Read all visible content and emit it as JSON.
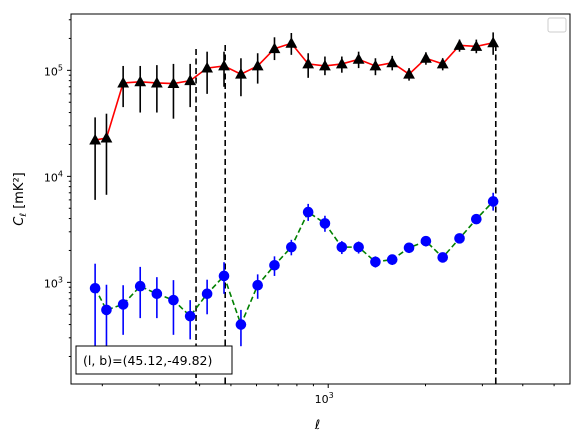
{
  "chart_data": {
    "type": "scatter",
    "title": "",
    "xlabel": "ℓ",
    "ylabel": "C_ℓ [mK²]",
    "xscale": "log",
    "yscale": "log",
    "xlim": [
      160,
      5600
    ],
    "ylim": [
      110,
      340000
    ],
    "grid": false,
    "legend": "top-right (empty)",
    "x_tick_labels": [
      {
        "value": 1000,
        "base": "10",
        "exp": "3"
      }
    ],
    "y_tick_labels": [
      {
        "value": 1000,
        "base": "10",
        "exp": "3"
      },
      {
        "value": 10000,
        "base": "10",
        "exp": "4"
      },
      {
        "value": 100000,
        "base": "10",
        "exp": "5"
      }
    ],
    "annotation": "(l, b)=(45.12,-49.82)",
    "vlines": [
      390,
      480,
      3300
    ],
    "series": [
      {
        "marker": "triangle",
        "marker_color": "#000000",
        "line_color": "#ff0000",
        "line_style": "solid",
        "errorbar_color": "#000000",
        "points": [
          {
            "x": 190,
            "y": 22000,
            "lo": 6000,
            "hi": 36000
          },
          {
            "x": 206,
            "y": 23000,
            "lo": 6700,
            "hi": 39000
          },
          {
            "x": 232,
            "y": 76000,
            "lo": 45000,
            "hi": 110000
          },
          {
            "x": 262,
            "y": 78000,
            "lo": 40000,
            "hi": 110000
          },
          {
            "x": 295,
            "y": 76000,
            "lo": 40000,
            "hi": 112000
          },
          {
            "x": 332,
            "y": 75000,
            "lo": 35000,
            "hi": 115000
          },
          {
            "x": 374,
            "y": 80000,
            "lo": 45000,
            "hi": 115000
          },
          {
            "x": 422,
            "y": 105000,
            "lo": 60000,
            "hi": 150000
          },
          {
            "x": 476,
            "y": 110000,
            "lo": 70000,
            "hi": 150000
          },
          {
            "x": 537,
            "y": 92000,
            "lo": 57000,
            "hi": 130000
          },
          {
            "x": 605,
            "y": 110000,
            "lo": 75000,
            "hi": 145000
          },
          {
            "x": 682,
            "y": 160000,
            "lo": 125000,
            "hi": 205000
          },
          {
            "x": 769,
            "y": 180000,
            "lo": 140000,
            "hi": 225000
          },
          {
            "x": 867,
            "y": 115000,
            "lo": 85000,
            "hi": 145000
          },
          {
            "x": 977,
            "y": 110000,
            "lo": 90000,
            "hi": 135000
          },
          {
            "x": 1102,
            "y": 115000,
            "lo": 95000,
            "hi": 135000
          },
          {
            "x": 1242,
            "y": 127000,
            "lo": 105000,
            "hi": 150000
          },
          {
            "x": 1400,
            "y": 110000,
            "lo": 90000,
            "hi": 130000
          },
          {
            "x": 1578,
            "y": 118000,
            "lo": 100000,
            "hi": 137000
          },
          {
            "x": 1779,
            "y": 92000,
            "lo": 80000,
            "hi": 105000
          },
          {
            "x": 2006,
            "y": 130000,
            "lo": 113000,
            "hi": 148000
          },
          {
            "x": 2261,
            "y": 115000,
            "lo": 100000,
            "hi": 130000
          },
          {
            "x": 2549,
            "y": 172000,
            "lo": 150000,
            "hi": 195000
          },
          {
            "x": 2873,
            "y": 168000,
            "lo": 145000,
            "hi": 195000
          },
          {
            "x": 3239,
            "y": 182000,
            "lo": 140000,
            "hi": 228000
          }
        ]
      },
      {
        "marker": "circle",
        "marker_color": "#0000ff",
        "line_color": "#008000",
        "line_style": "dashed",
        "errorbar_color": "#0000ff",
        "points": [
          {
            "x": 190,
            "y": 880,
            "lo": 240,
            "hi": 1500
          },
          {
            "x": 206,
            "y": 550,
            "lo": 180,
            "hi": 950
          },
          {
            "x": 232,
            "y": 620,
            "lo": 320,
            "hi": 940
          },
          {
            "x": 262,
            "y": 920,
            "lo": 460,
            "hi": 1400
          },
          {
            "x": 295,
            "y": 780,
            "lo": 460,
            "hi": 1120
          },
          {
            "x": 332,
            "y": 680,
            "lo": 320,
            "hi": 1050
          },
          {
            "x": 374,
            "y": 480,
            "lo": 290,
            "hi": 680
          },
          {
            "x": 422,
            "y": 780,
            "lo": 500,
            "hi": 1060
          },
          {
            "x": 476,
            "y": 1150,
            "lo": 780,
            "hi": 1550
          },
          {
            "x": 537,
            "y": 400,
            "lo": 250,
            "hi": 550
          },
          {
            "x": 605,
            "y": 940,
            "lo": 700,
            "hi": 1190
          },
          {
            "x": 682,
            "y": 1450,
            "lo": 1150,
            "hi": 1760
          },
          {
            "x": 769,
            "y": 2150,
            "lo": 1800,
            "hi": 2520
          },
          {
            "x": 867,
            "y": 4600,
            "lo": 3800,
            "hi": 5500
          },
          {
            "x": 977,
            "y": 3600,
            "lo": 3000,
            "hi": 4250
          },
          {
            "x": 1102,
            "y": 2150,
            "lo": 1850,
            "hi": 2450
          },
          {
            "x": 1242,
            "y": 2150,
            "lo": 1870,
            "hi": 2430
          },
          {
            "x": 1400,
            "y": 1560,
            "lo": 1380,
            "hi": 1760
          },
          {
            "x": 1578,
            "y": 1640,
            "lo": 1460,
            "hi": 1830
          },
          {
            "x": 1779,
            "y": 2120,
            "lo": 1900,
            "hi": 2350
          },
          {
            "x": 2006,
            "y": 2450,
            "lo": 2180,
            "hi": 2720
          },
          {
            "x": 2261,
            "y": 1720,
            "lo": 1560,
            "hi": 1880
          },
          {
            "x": 2549,
            "y": 2600,
            "lo": 2350,
            "hi": 2860
          },
          {
            "x": 2873,
            "y": 3950,
            "lo": 3550,
            "hi": 4380
          },
          {
            "x": 3239,
            "y": 5800,
            "lo": 4750,
            "hi": 7000
          }
        ]
      }
    ]
  }
}
